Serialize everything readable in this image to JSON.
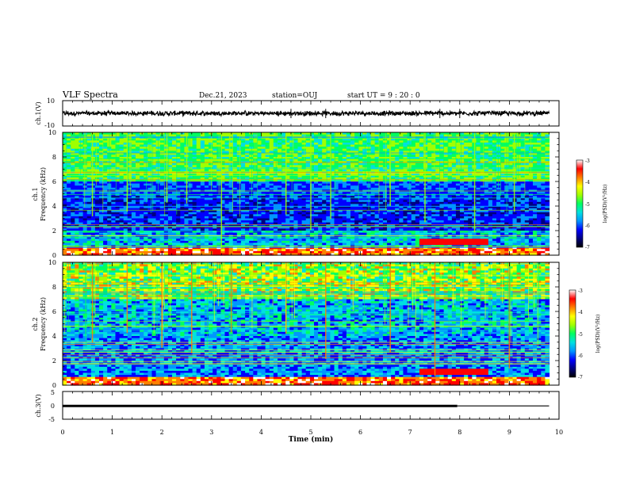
{
  "header": {
    "title": "VLF Spectra",
    "date": "Dec.21, 2023",
    "station": "station=OUJ",
    "start": "start  UT =   9 : 20 : 0"
  },
  "chart_data": [
    {
      "type": "line",
      "panel": "ch1-waveform",
      "ylabel": "ch.1(V)",
      "ylim": [
        -10,
        10
      ],
      "y_tick_labels": [
        "10",
        "-10"
      ],
      "xlim": [
        0,
        10
      ],
      "baseline": 0,
      "amplitude_envelope": 1.5,
      "spikes_min": [
        4.6,
        5.3,
        7.6,
        8.0
      ]
    },
    {
      "type": "heatmap",
      "panel": "ch1-spectrogram",
      "ylabel": "Frequency (kHz)",
      "channel_label": "ch.1",
      "ylim": [
        0,
        10
      ],
      "y_tick_labels": [
        "0",
        "2",
        "4",
        "6",
        "8",
        "10"
      ],
      "xlim": [
        0,
        9.8
      ],
      "colorbar": {
        "label": "log(PSD)(V²/Hz)",
        "range": [
          -7,
          -3
        ],
        "tick_labels": [
          "-3",
          "-4",
          "-5",
          "-6",
          "-7"
        ]
      },
      "colormap": [
        "#000000",
        "#000080",
        "#0000ff",
        "#0096ff",
        "#00e0e0",
        "#00ff60",
        "#a0ff00",
        "#ffff00",
        "#ff8000",
        "#ff0000",
        "#ffffff"
      ],
      "impulse_times_min": [
        0.6,
        1.3,
        2.1,
        2.5,
        3.2,
        4.5,
        5.0,
        5.4,
        6.6,
        7.3,
        8.3,
        9.1
      ]
    },
    {
      "type": "heatmap",
      "panel": "ch2-spectrogram",
      "ylabel": "Frequency (kHz)",
      "channel_label": "ch.2",
      "ylim": [
        0,
        10
      ],
      "y_tick_labels": [
        "0",
        "2",
        "4",
        "6",
        "8",
        "10"
      ],
      "xlim": [
        0,
        9.8
      ],
      "colorbar": {
        "label": "log(PSD)(V²/Hz)",
        "range": [
          -7,
          -3
        ],
        "tick_labels": [
          "-3",
          "-4",
          "-5",
          "-6",
          "-7"
        ]
      },
      "colormap": [
        "#000000",
        "#000080",
        "#0000ff",
        "#0096ff",
        "#00e0e0",
        "#00ff60",
        "#a0ff00",
        "#ffff00",
        "#ff8000",
        "#ff0000",
        "#ffffff"
      ],
      "impulse_times_min": [
        0.6,
        1.3,
        2.0,
        2.6,
        3.4,
        4.5,
        5.3,
        6.6,
        7.5,
        9.0
      ]
    },
    {
      "type": "line",
      "panel": "ch3-waveform",
      "ylabel": "ch.3(V)",
      "ylim": [
        -5,
        5
      ],
      "y_tick_labels": [
        "5",
        "0",
        "-5"
      ],
      "xlim": [
        0,
        10
      ],
      "segments": [
        {
          "x": [
            0,
            7.95
          ],
          "y": -0.2,
          "thickness": "thick"
        },
        {
          "x": [
            7.95,
            9.8
          ],
          "y": -0.2,
          "thickness": "thin"
        }
      ]
    }
  ],
  "xaxis": {
    "label": "Time (min)",
    "range": [
      0,
      10
    ],
    "tick_labels": [
      "0",
      "1",
      "2",
      "3",
      "4",
      "5",
      "6",
      "7",
      "8",
      "9",
      "10"
    ]
  }
}
